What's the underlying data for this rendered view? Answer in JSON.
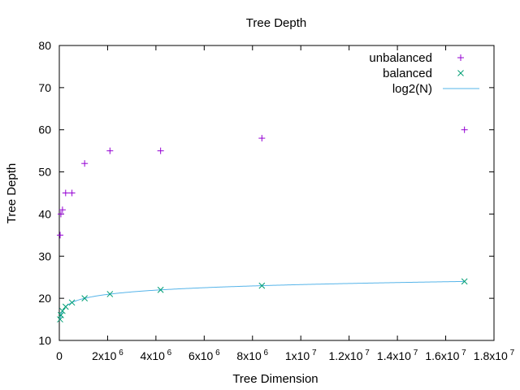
{
  "chart_data": {
    "type": "scatter",
    "title": "Tree Depth",
    "xlabel": "Tree Dimension",
    "ylabel": "Tree Depth",
    "xlim": [
      0,
      18000000
    ],
    "ylim": [
      10,
      80
    ],
    "grid": false,
    "legend_position": "top-right",
    "x_ticks": [
      {
        "value": 0,
        "base": "0",
        "exp": ""
      },
      {
        "value": 2000000,
        "base": "2x10",
        "exp": "6"
      },
      {
        "value": 4000000,
        "base": "4x10",
        "exp": "6"
      },
      {
        "value": 6000000,
        "base": "6x10",
        "exp": "6"
      },
      {
        "value": 8000000,
        "base": "8x10",
        "exp": "6"
      },
      {
        "value": 10000000,
        "base": "1x10",
        "exp": "7"
      },
      {
        "value": 12000000,
        "base": "1.2x10",
        "exp": "7"
      },
      {
        "value": 14000000,
        "base": "1.4x10",
        "exp": "7"
      },
      {
        "value": 16000000,
        "base": "1.6x10",
        "exp": "7"
      },
      {
        "value": 18000000,
        "base": "1.8x10",
        "exp": "7"
      }
    ],
    "y_ticks": [
      10,
      20,
      30,
      40,
      50,
      60,
      70,
      80
    ],
    "series": [
      {
        "name": "unbalanced",
        "marker": "plus",
        "color": "#9400d3",
        "x": [
          32768,
          65536,
          131072,
          262144,
          524288,
          1048576,
          2097152,
          4194304,
          8388608,
          16777216
        ],
        "y": [
          35,
          40,
          41,
          45,
          45,
          52,
          55,
          55,
          58,
          60
        ]
      },
      {
        "name": "balanced",
        "marker": "cross",
        "color": "#009e73",
        "x": [
          32768,
          65536,
          131072,
          262144,
          524288,
          1048576,
          2097152,
          4194304,
          8388608,
          16777216
        ],
        "y": [
          15,
          16,
          17,
          18,
          19,
          20,
          21,
          22,
          23,
          24
        ]
      },
      {
        "name": "log2(N)",
        "marker": "line",
        "color": "#56b4e9",
        "function": "log2",
        "x_range": [
          32768,
          16777216
        ]
      }
    ]
  }
}
